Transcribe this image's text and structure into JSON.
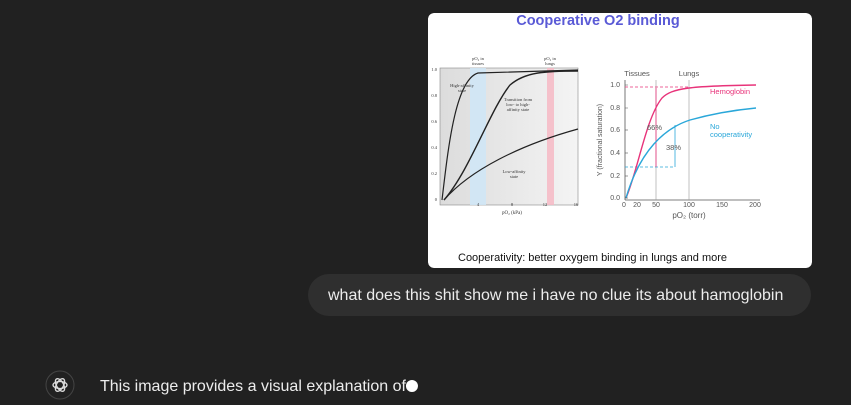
{
  "conversation": {
    "image": {
      "title": "Cooperative O2 binding",
      "left_panel": {
        "top_labels": [
          [
            "pO₂ in",
            "tissues"
          ],
          [
            "pO₂ in",
            "lungs"
          ]
        ],
        "annotations": [
          [
            "High-affinity",
            "state"
          ],
          [
            "Transition from",
            "low- to high-",
            "affinity state"
          ],
          [
            "Low-affinity",
            "state"
          ]
        ],
        "yticks": [
          "1.0",
          "0.8",
          "0.6",
          "0.4",
          "0.2",
          "0"
        ],
        "xticks": [
          "4",
          "8",
          "12",
          "16"
        ],
        "xlabel": "pO₂ (kPa)"
      },
      "right_panel": {
        "column_labels": [
          "Tissues",
          "Lungs"
        ],
        "yticks": [
          "1.0",
          "0.8",
          "0.6",
          "0.4",
          "0.2",
          "0.0"
        ],
        "xticks": [
          "0",
          "20",
          "50",
          "100",
          "150",
          "200"
        ],
        "ylabel": "Y (fractional saturation)",
        "xlabel": "pO₂ (torr)",
        "legend": [
          [
            "Hemoglobin"
          ],
          [
            "No",
            "cooperativity"
          ]
        ],
        "annotations": [
          "66%",
          "38%"
        ]
      },
      "caption": "Cooperativity: better oxygem binding in lungs and more"
    },
    "user_message": "what does this shit show me i have no clue its about hamoglobin",
    "assistant_message": "This image provides a visual explanation of"
  }
}
